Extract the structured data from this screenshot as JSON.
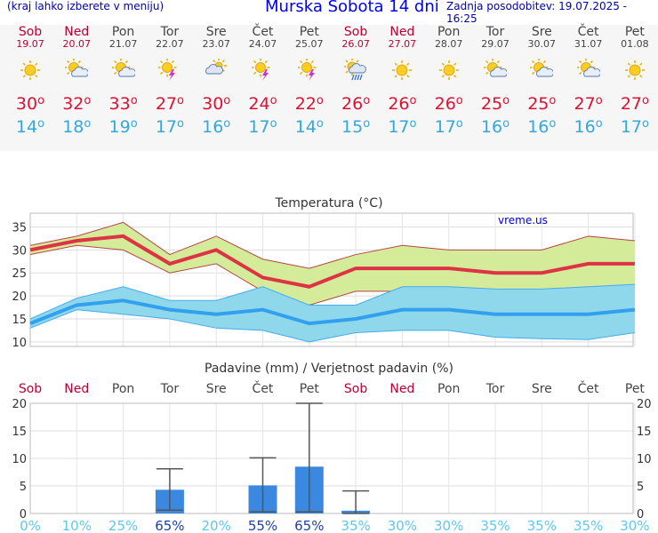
{
  "header": {
    "left": "(kraj lahko izberete v meniju)",
    "title": "Murska Sobota 14 dni",
    "updated": "Zadnja posodobitev: 19.07.2025 - 16:25"
  },
  "days": [
    {
      "day": "Sob",
      "date": "19.07",
      "weekend": true,
      "icon": "sun-icon",
      "tmax": "30",
      "tmin": "14"
    },
    {
      "day": "Ned",
      "date": "20.07",
      "weekend": true,
      "icon": "sun-cloud-icon",
      "tmax": "32",
      "tmin": "18"
    },
    {
      "day": "Pon",
      "date": "21.07",
      "weekend": false,
      "icon": "sun-cloud-icon",
      "tmax": "33",
      "tmin": "19"
    },
    {
      "day": "Tor",
      "date": "22.07",
      "weekend": false,
      "icon": "sun-thunder-icon",
      "tmax": "27",
      "tmin": "17"
    },
    {
      "day": "Sre",
      "date": "23.07",
      "weekend": false,
      "icon": "cloud-sun-icon",
      "tmax": "30",
      "tmin": "16"
    },
    {
      "day": "Čet",
      "date": "24.07",
      "weekend": false,
      "icon": "sun-thunder-icon",
      "tmax": "24",
      "tmin": "17"
    },
    {
      "day": "Pet",
      "date": "25.07",
      "weekend": false,
      "icon": "sun-thunder-icon",
      "tmax": "22",
      "tmin": "14"
    },
    {
      "day": "Sob",
      "date": "26.07",
      "weekend": true,
      "icon": "rain-cloud-icon",
      "tmax": "26",
      "tmin": "15"
    },
    {
      "day": "Ned",
      "date": "27.07",
      "weekend": true,
      "icon": "sun-icon",
      "tmax": "26",
      "tmin": "17"
    },
    {
      "day": "Pon",
      "date": "28.07",
      "weekend": false,
      "icon": "sun-icon",
      "tmax": "26",
      "tmin": "17"
    },
    {
      "day": "Tor",
      "date": "29.07",
      "weekend": false,
      "icon": "sun-cloud-icon",
      "tmax": "25",
      "tmin": "16"
    },
    {
      "day": "Sre",
      "date": "30.07",
      "weekend": false,
      "icon": "sun-cloud-icon",
      "tmax": "25",
      "tmin": "16"
    },
    {
      "day": "Čet",
      "date": "31.07",
      "weekend": false,
      "icon": "sun-cloud-icon",
      "tmax": "27",
      "tmin": "16"
    },
    {
      "day": "Pet",
      "date": "01.08",
      "weekend": false,
      "icon": "sun-icon",
      "tmax": "27",
      "tmin": "17"
    }
  ],
  "chart_data": [
    {
      "type": "line",
      "title": "Temperatura (°C)",
      "watermark": "vreme.us",
      "ylim": [
        9,
        38
      ],
      "yticks": [
        10,
        15,
        20,
        25,
        30,
        35
      ],
      "x": [
        "19.07",
        "20.07",
        "21.07",
        "22.07",
        "23.07",
        "24.07",
        "25.07",
        "26.07",
        "27.07",
        "28.07",
        "29.07",
        "30.07",
        "31.07",
        "01.08"
      ],
      "series": [
        {
          "name": "Tmax",
          "values": [
            30,
            32,
            33,
            27,
            30,
            24,
            22,
            26,
            26,
            26,
            25,
            25,
            27,
            27
          ],
          "color": "#dd3344"
        },
        {
          "name": "Tmax upper",
          "values": [
            31,
            33,
            36,
            29,
            33,
            28,
            26,
            29,
            31,
            30,
            30,
            30,
            33,
            32
          ],
          "color": "#aaccaa"
        },
        {
          "name": "Tmax lower",
          "values": [
            29,
            31,
            30,
            25,
            27,
            21,
            18,
            21,
            21,
            21,
            21,
            21,
            21,
            22
          ],
          "color": "#aaccaa"
        },
        {
          "name": "Tmin",
          "values": [
            14,
            18,
            19,
            17,
            16,
            17,
            14,
            15,
            17,
            17,
            16,
            16,
            16,
            17
          ],
          "color": "#33a8ee"
        },
        {
          "name": "Tmin upper",
          "values": [
            15,
            19.5,
            22,
            19,
            19,
            22,
            18,
            18,
            22,
            22,
            21.5,
            21.5,
            22,
            22.5
          ],
          "color": "#44aaee"
        },
        {
          "name": "Tmin lower",
          "values": [
            13,
            17,
            16,
            15,
            13,
            12.5,
            10,
            12,
            12.5,
            12.5,
            11,
            10.7,
            10.5,
            12
          ],
          "color": "#44aaee"
        }
      ]
    },
    {
      "type": "bar",
      "title": "Padavine (mm) / Verjetnost padavin (%)",
      "ylim": [
        0,
        20
      ],
      "yticks": [
        0,
        5,
        10,
        15,
        20
      ],
      "categories": [
        "Sob",
        "Ned",
        "Pon",
        "Tor",
        "Sre",
        "Čet",
        "Pet",
        "Sob",
        "Ned",
        "Pon",
        "Tor",
        "Sre",
        "Čet",
        "Pet"
      ],
      "values": [
        0,
        0,
        0,
        4.3,
        0,
        5.1,
        8.5,
        0.5,
        0,
        0,
        0,
        0,
        0,
        0
      ],
      "error_high": [
        0,
        0,
        0,
        8.1,
        0,
        10.1,
        20,
        4.1,
        0,
        0,
        0,
        0,
        0,
        0
      ],
      "error_low": [
        0,
        0,
        0,
        0.6,
        0,
        0.3,
        0.3,
        0,
        0,
        0,
        0,
        0,
        0,
        0
      ],
      "probability": [
        "0%",
        "10%",
        "25%",
        "65%",
        "20%",
        "55%",
        "65%",
        "35%",
        "30%",
        "30%",
        "35%",
        "35%",
        "35%",
        "30%"
      ]
    }
  ]
}
